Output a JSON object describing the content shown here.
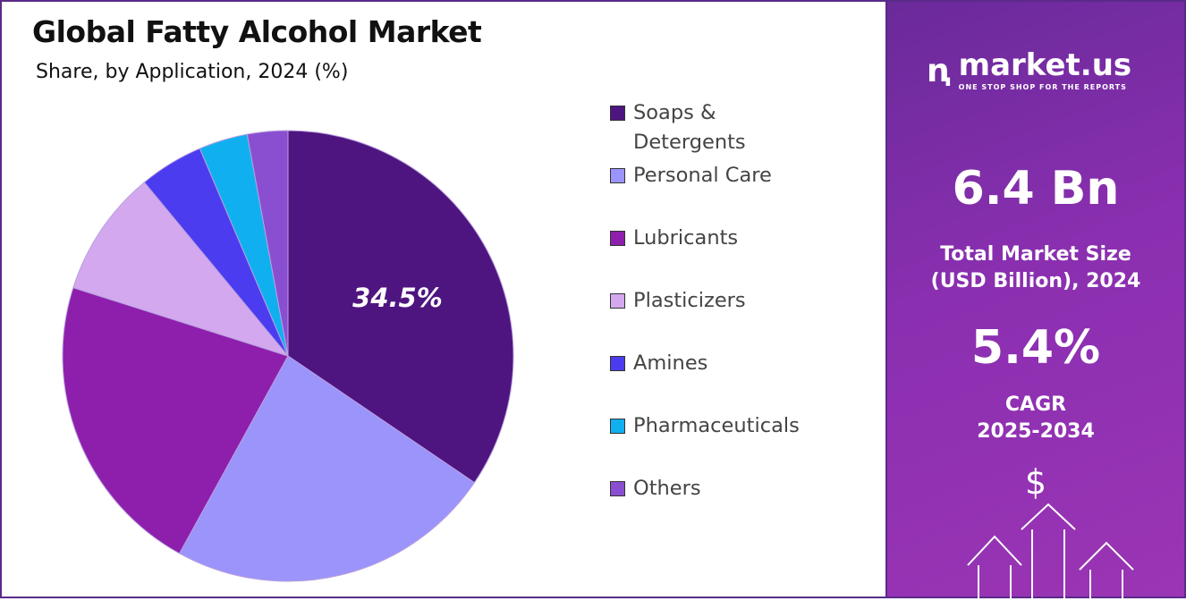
{
  "title": "Global Fatty Alcohol Market",
  "subtitle": "Share, by Application, 2024 (%)",
  "chart_data": {
    "type": "pie",
    "title": "Global Fatty Alcohol Market",
    "subtitle": "Share, by Application, 2024 (%)",
    "legend_position": "right",
    "categories": [
      "Soaps & Detergents",
      "Personal Care",
      "Lubricants",
      "Plasticizers",
      "Amines",
      "Pharmaceuticals",
      "Others"
    ],
    "values": [
      34.5,
      23.5,
      21.9,
      9.1,
      4.6,
      3.5,
      2.9
    ],
    "colors": [
      "#4e1580",
      "#9b94fb",
      "#8e1fac",
      "#d3a8ee",
      "#4b3cf0",
      "#10b0f0",
      "#8a4fd0"
    ],
    "data_labels": [
      "34.5%"
    ]
  },
  "side": {
    "logo_name": "market.us",
    "logo_tagline": "ONE STOP SHOP FOR THE REPORTS",
    "market_size": "6.4 Bn",
    "market_size_label_1": "Total Market Size",
    "market_size_label_2": "(USD Billion), 2024",
    "cagr": "5.4%",
    "cagr_label_1": "CAGR",
    "cagr_label_2": "2025-2034",
    "dollar": "$"
  }
}
